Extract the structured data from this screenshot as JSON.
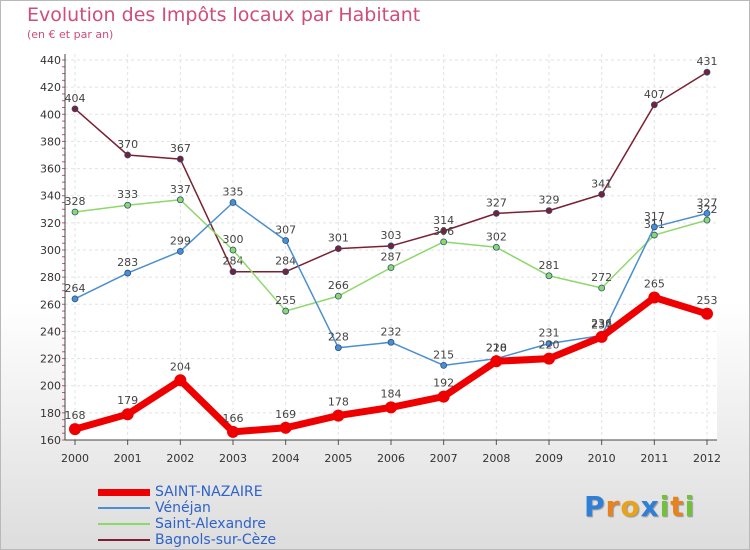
{
  "chart_data": {
    "type": "line",
    "title": "Evolution des Impôts locaux par Habitant",
    "subtitle": "(en € et par an)",
    "xlabel": "",
    "ylabel": "",
    "ylim": [
      160,
      440
    ],
    "yticks": [
      160,
      180,
      200,
      220,
      240,
      260,
      280,
      300,
      320,
      340,
      360,
      380,
      400,
      420,
      440
    ],
    "grid": true,
    "legend_position": "bottom-left",
    "categories": [
      "2000",
      "2001",
      "2002",
      "2003",
      "2004",
      "2005",
      "2006",
      "2007",
      "2008",
      "2009",
      "2010",
      "2011",
      "2012"
    ],
    "series": [
      {
        "name": "SAINT-NAZAIRE",
        "color": "#ee0000",
        "values": [
          168,
          179,
          204,
          166,
          169,
          178,
          184,
          192,
          218,
          220,
          236,
          265,
          253
        ]
      },
      {
        "name": "Vénéjan",
        "color": "#4a8fd0",
        "values": [
          264,
          283,
          299,
          335,
          307,
          228,
          232,
          215,
          220,
          231,
          237,
          317,
          327
        ]
      },
      {
        "name": "Saint-Alexandre",
        "color": "#8ed86a",
        "values": [
          328,
          333,
          337,
          300,
          255,
          266,
          287,
          306,
          302,
          281,
          272,
          311,
          322
        ]
      },
      {
        "name": "Bagnols-sur-Cèze",
        "color": "#7a2030",
        "values": [
          404,
          370,
          367,
          284,
          284,
          301,
          303,
          314,
          327,
          329,
          341,
          407,
          431
        ]
      }
    ]
  },
  "logo": {
    "text": "Proxiti",
    "letters": [
      "P",
      "r",
      "o",
      "x",
      "i",
      "t",
      "i"
    ],
    "colors": [
      "#2f7fd6",
      "#e8821e",
      "#e8a21e",
      "#2f7fd6",
      "#72c13a",
      "#e8821e",
      "#72c13a"
    ]
  }
}
